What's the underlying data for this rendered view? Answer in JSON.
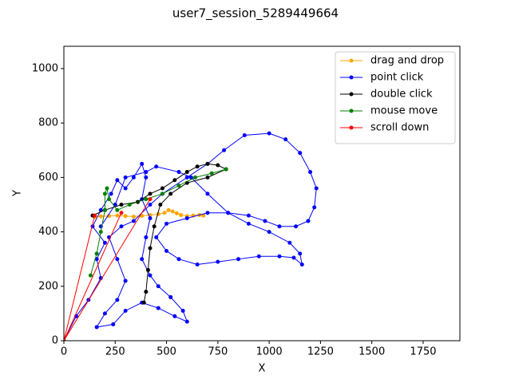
{
  "chart_data": {
    "type": "line",
    "title": "user7_session_5289449664",
    "x_label": "X",
    "y_label": "Y",
    "xlim": [
      0,
      1929
    ],
    "ylim": [
      0,
      1082
    ],
    "xticks": [
      0,
      250,
      500,
      750,
      1000,
      1250,
      1500,
      1750
    ],
    "yticks": [
      0,
      200,
      400,
      600,
      800,
      1000
    ],
    "legend": "upper right",
    "series": [
      {
        "name": "drag and drop",
        "color": "#ffa500",
        "x": [
          150,
          180,
          220,
          260,
          300,
          340,
          380,
          420,
          460,
          490,
          510,
          530,
          550,
          570,
          600,
          630,
          660,
          680
        ],
        "values": [
          455,
          457,
          458,
          460,
          458,
          456,
          459,
          462,
          465,
          470,
          480,
          475,
          468,
          462,
          458,
          460,
          462,
          460
        ]
      },
      {
        "name": "point click",
        "color": "#0000ff",
        "x": [
          0,
          60,
          120,
          180,
          160,
          200,
          140,
          180,
          230,
          260,
          300,
          340,
          380,
          400,
          380,
          420,
          400,
          380,
          420,
          460,
          520,
          580,
          600,
          540,
          460,
          380,
          300,
          240,
          160,
          200,
          260,
          300,
          260,
          220,
          280,
          340,
          420,
          480,
          600,
          700,
          780,
          880,
          1000,
          1080,
          1150,
          1200,
          1230,
          1220,
          1190,
          1130,
          1050,
          980,
          900,
          800,
          700,
          600,
          500,
          450,
          500,
          560,
          650,
          750,
          850,
          950,
          1050,
          1120,
          1160,
          1150,
          1100,
          1000,
          900,
          800,
          700,
          620,
          560,
          450,
          400,
          300,
          250,
          180
        ],
        "values": [
          0,
          90,
          150,
          230,
          300,
          360,
          420,
          480,
          540,
          590,
          560,
          600,
          650,
          600,
          520,
          450,
          380,
          300,
          240,
          200,
          160,
          110,
          70,
          90,
          120,
          140,
          110,
          60,
          50,
          100,
          150,
          220,
          300,
          380,
          420,
          440,
          500,
          540,
          600,
          650,
          700,
          755,
          762,
          740,
          690,
          620,
          560,
          490,
          440,
          420,
          420,
          440,
          460,
          470,
          470,
          450,
          430,
          380,
          330,
          300,
          280,
          290,
          300,
          310,
          310,
          305,
          280,
          320,
          360,
          400,
          430,
          470,
          540,
          600,
          620,
          640,
          620,
          600,
          500,
          420
        ]
      },
      {
        "name": "double click",
        "color": "#000000",
        "x": [
          140,
          200,
          280,
          360,
          420,
          480,
          540,
          600,
          650,
          700,
          750,
          790,
          700,
          600,
          520,
          470,
          440,
          420,
          410,
          400,
          390
        ],
        "values": [
          460,
          480,
          500,
          510,
          540,
          560,
          590,
          620,
          640,
          650,
          645,
          630,
          600,
          580,
          540,
          500,
          420,
          340,
          260,
          180,
          140
        ]
      },
      {
        "name": "mouse move",
        "color": "#008000",
        "x": [
          130,
          160,
          180,
          200,
          200,
          210,
          220,
          260,
          320,
          400,
          480,
          560,
          640,
          720,
          790
        ],
        "values": [
          240,
          320,
          400,
          480,
          540,
          560,
          520,
          480,
          500,
          520,
          540,
          570,
          600,
          615,
          630
        ]
      },
      {
        "name": "scroll down",
        "color": "#ff0000",
        "x": [
          0,
          150,
          0,
          280,
          0,
          420
        ],
        "values": [
          0,
          460,
          0,
          470,
          0,
          520
        ]
      }
    ]
  }
}
